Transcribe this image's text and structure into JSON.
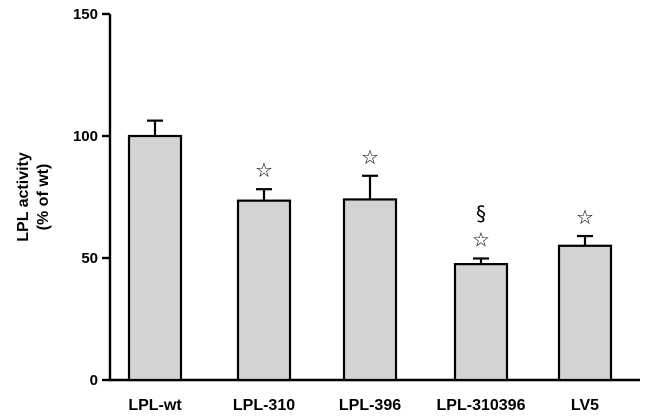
{
  "chart_data": {
    "type": "bar",
    "title": "",
    "xlabel": "",
    "ylabel_lines": [
      "LPL activity",
      "(% of wt)"
    ],
    "ylim": [
      0,
      150
    ],
    "yticks": [
      0,
      50,
      100,
      150
    ],
    "categories": [
      "LPL-wt",
      "LPL-310",
      "LPL-396",
      "LPL-310396",
      "LV5"
    ],
    "values": [
      100,
      73.5,
      74,
      47.5,
      55
    ],
    "errors": [
      6.3,
      4.7,
      9.7,
      2.3,
      4
    ],
    "annotations": [
      [],
      [
        "☆"
      ],
      [
        "☆"
      ],
      [
        "☆",
        "§"
      ],
      [
        "☆"
      ]
    ],
    "bar_color": "#d3d3d3",
    "grid": false,
    "legend": "none"
  }
}
